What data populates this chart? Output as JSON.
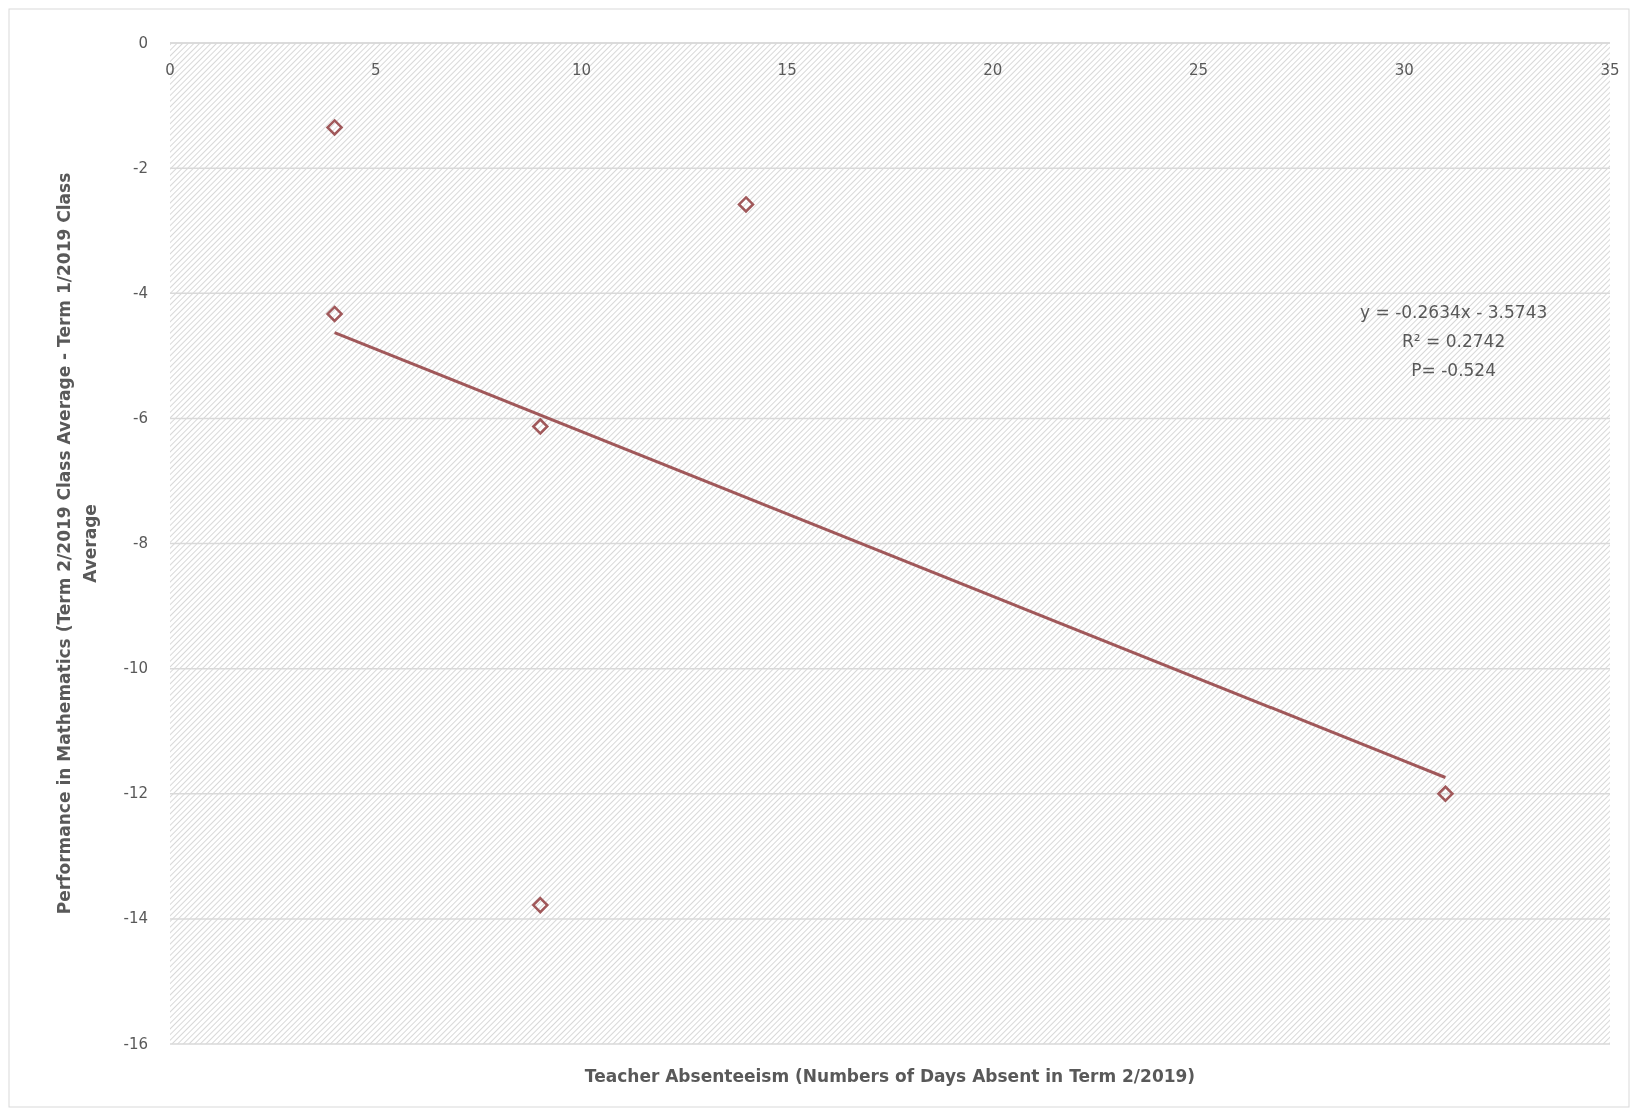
{
  "chart_data": {
    "type": "scatter",
    "xlabel": "Teacher Absenteeism (Numbers of Days Absent in Term 2/2019)",
    "ylabel": "Performance in Mathematics  (Term 2/2019 Class Average - Term 1/2019 Class Average",
    "xlim": [
      0,
      35
    ],
    "xticks": [
      0,
      5,
      10,
      15,
      20,
      25,
      30,
      35
    ],
    "ylim": [
      -16,
      0
    ],
    "yticks": [
      -16,
      -14,
      -12,
      -10,
      -8,
      -6,
      -4,
      -2,
      0
    ],
    "grid": "y",
    "marker": "diamond",
    "series": [
      {
        "color": "#a0585a",
        "x": [
          4,
          4,
          9,
          9,
          14,
          31
        ],
        "values": [
          -1.35,
          -4.33,
          -6.13,
          -13.78,
          -2.58,
          -12.0
        ]
      },
      {
        "type": "line",
        "marker": "none",
        "color": "#a0585a",
        "x": [
          4,
          31
        ],
        "values": [
          -4.63,
          -11.74
        ]
      }
    ],
    "annotations": [
      "y = -0.2634x - 3.5743",
      "R² = 0.2742",
      "P= -0.524"
    ]
  }
}
